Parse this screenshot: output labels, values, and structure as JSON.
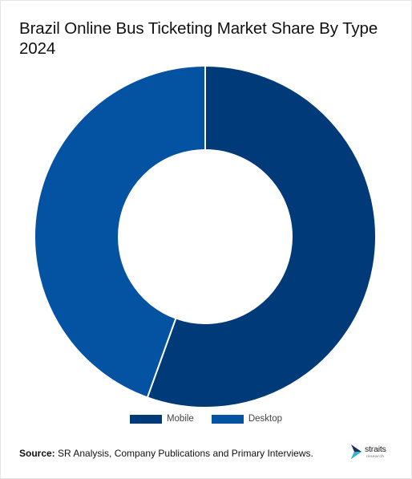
{
  "title": "Brazil Online Bus Ticketing Market Share By Type 2024",
  "source": {
    "label": "Source:",
    "text": " SR Analysis, Company Publications and Primary Interviews."
  },
  "logo": {
    "word": "straits",
    "sub": "research"
  },
  "colors": {
    "mobile": "#003a78",
    "desktop": "#0452a2",
    "separator": "#ffffff"
  },
  "chart_data": {
    "type": "pie",
    "variant": "donut",
    "title": "Brazil Online Bus Ticketing Market Share By Type 2024",
    "categories": [
      "Mobile",
      "Desktop"
    ],
    "values": [
      55.5,
      44.5
    ],
    "start_position": "12 o'clock",
    "direction": "clockwise",
    "legend_position": "bottom-center"
  }
}
